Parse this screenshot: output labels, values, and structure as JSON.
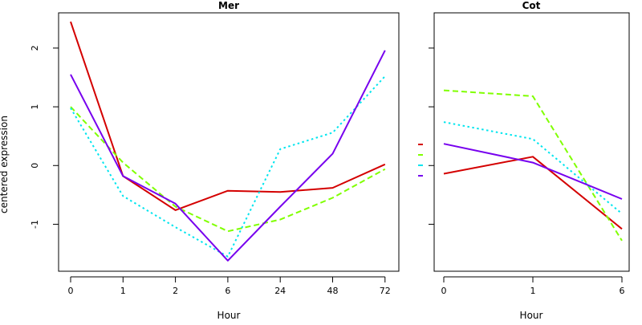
{
  "ylabel": "centered expression",
  "series_colors": [
    "#d40000",
    "#80ff00",
    "#00e5ee",
    "#7700ee"
  ],
  "series_dash": [
    "solid",
    "dashed",
    "dotted",
    "solid"
  ],
  "chart_data": [
    {
      "type": "line",
      "title": "Mer",
      "xlabel": "Hour",
      "x": [
        "0",
        "1",
        "2",
        "6",
        "24",
        "48",
        "72"
      ],
      "ylim": [
        -1.8,
        2.6
      ],
      "yticks": [
        "-1",
        "0",
        "1",
        "2"
      ],
      "yticks_values": [
        -1,
        0,
        1,
        2
      ],
      "series": [
        {
          "values": [
            2.45,
            -0.18,
            -0.76,
            -0.43,
            -0.45,
            -0.38,
            0.02
          ]
        },
        {
          "values": [
            1.0,
            0.05,
            -0.7,
            -1.12,
            -0.92,
            -0.55,
            -0.06
          ]
        },
        {
          "values": [
            0.98,
            -0.52,
            -1.05,
            -1.55,
            0.28,
            0.56,
            1.52
          ]
        },
        {
          "values": [
            1.55,
            -0.18,
            -0.65,
            -1.62,
            -0.7,
            0.2,
            1.96
          ]
        }
      ]
    },
    {
      "type": "line",
      "title": "Cot",
      "xlabel": "Hour",
      "x": [
        "0",
        "1",
        "6"
      ],
      "ylim": [
        -1.8,
        2.6
      ],
      "series": [
        {
          "values": [
            -0.14,
            0.15,
            -1.08
          ]
        },
        {
          "values": [
            1.28,
            1.18,
            -1.28
          ]
        },
        {
          "values": [
            0.74,
            0.45,
            -0.82
          ]
        },
        {
          "values": [
            0.37,
            0.05,
            -0.57
          ]
        }
      ]
    }
  ]
}
